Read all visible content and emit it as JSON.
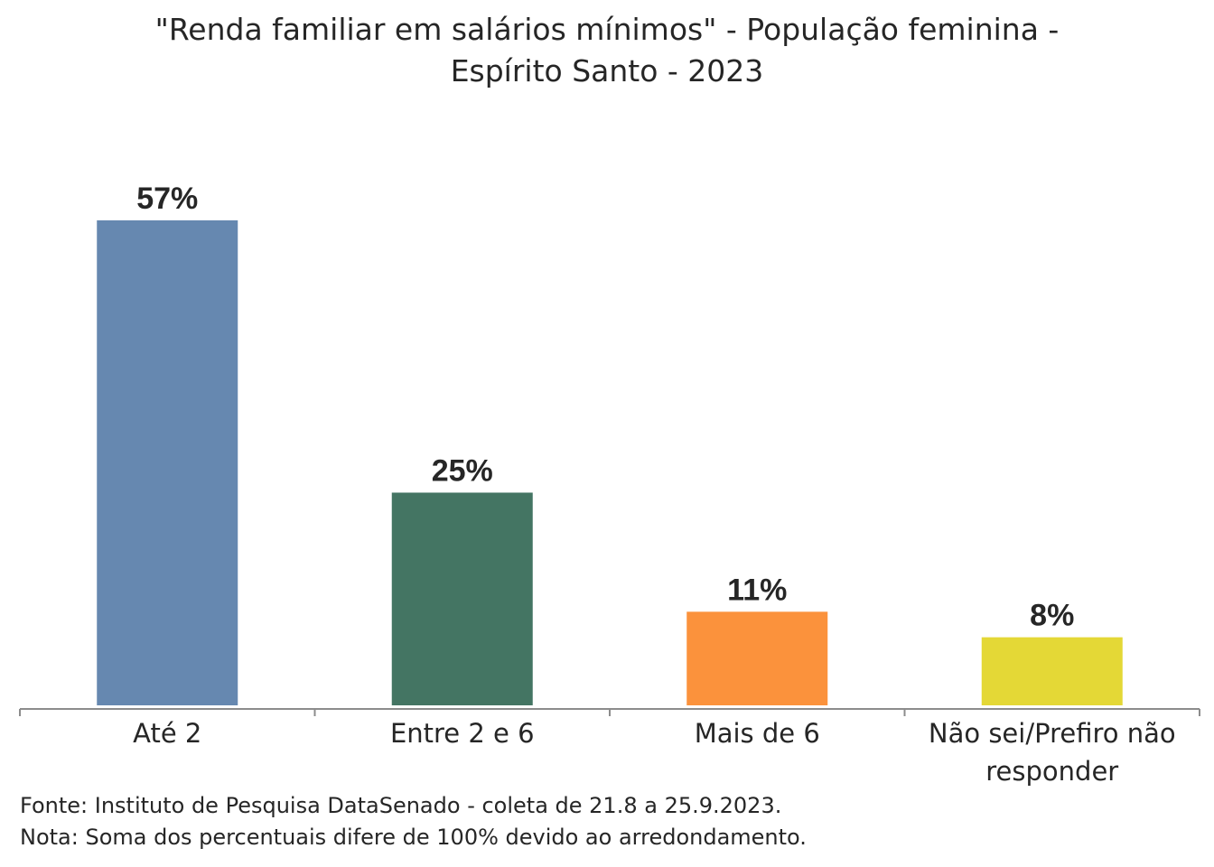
{
  "chart_data": {
    "type": "bar",
    "title_lines": [
      "\"Renda familiar em salários mínimos\" - População feminina -",
      "Espírito Santo - 2023"
    ],
    "categories": [
      [
        "Até 2"
      ],
      [
        "Entre 2 e 6"
      ],
      [
        "Mais de 6"
      ],
      [
        "Não sei/Prefiro não",
        "responder"
      ]
    ],
    "values": [
      57,
      25,
      11,
      8
    ],
    "value_labels": [
      "57%",
      "25%",
      "11%",
      "8%"
    ],
    "colors": [
      "#6688B0",
      "#447563",
      "#FB923C",
      "#E4D836"
    ],
    "ylim": [
      0,
      57
    ],
    "grid": false,
    "legend": "none"
  },
  "footnotes": {
    "source": "Fonte: Instituto de Pesquisa DataSenado - coleta de 21.8 a 25.9.2023.",
    "note": "Nota: Soma dos percentuais difere de 100% devido ao arredondamento."
  }
}
